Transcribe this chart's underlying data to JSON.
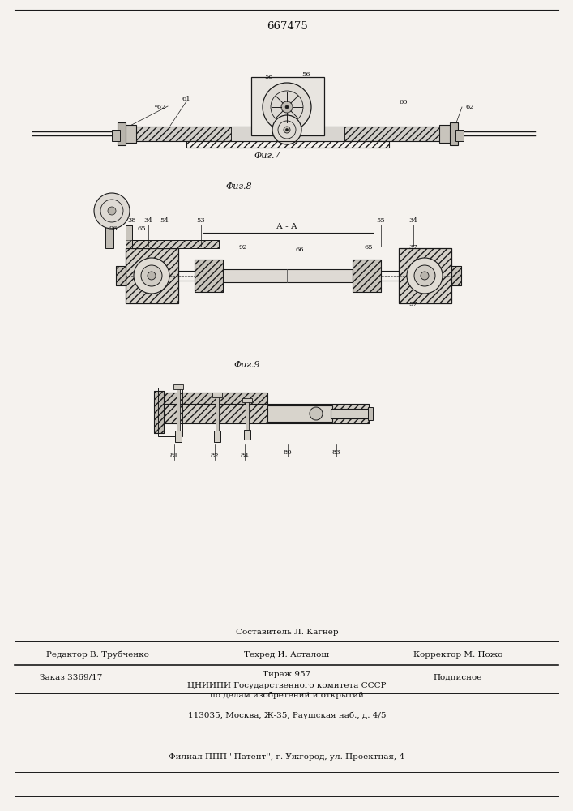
{
  "patent_number": "667475",
  "bg_color": "#f5f2ee",
  "line_color": "#1a1a1a",
  "fig7_label": "Фиг.7",
  "fig8_label": "Фиг.8",
  "fig9_label": "Фиг.9",
  "fig8_section_label": "А - А",
  "footer_sestavitel": "Составитель Л. Кагнер",
  "footer_redaktor": "Редактор В. Трубченко",
  "footer_tekhred": "Техред И. Асталош",
  "footer_korrektor": "Корректор М. Пожо",
  "footer_zakaz": "Заказ 3369/17",
  "footer_tirazh": "Тираж 957",
  "footer_podpisnoe": "Подписное",
  "footer_cniip1": "ЦНИИПИ Государственного комитета СССР",
  "footer_cniip2": "по делам изобретений и открытий",
  "footer_cniip3": "113035, Москва, Ж-35, Раушская наб., д. 4/5",
  "footer_filial": "Филиал ППП ''Патент'', г. Ужгород, ул. Проектная, 4"
}
